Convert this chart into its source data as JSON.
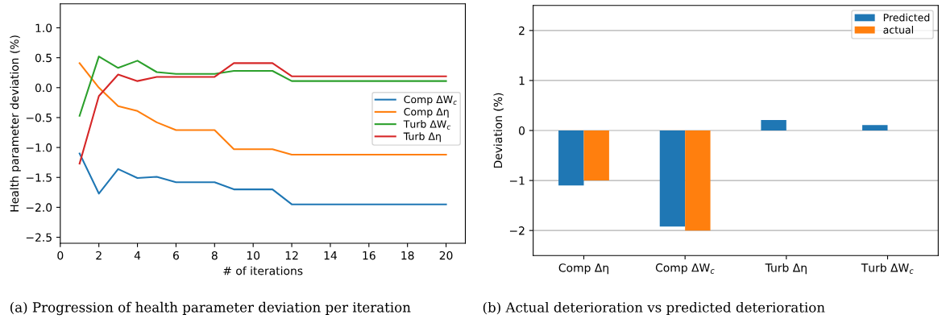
{
  "chart_data": [
    {
      "type": "line",
      "xlabel": "# of iterations",
      "ylabel": "Health parameter deviation (%)",
      "x": [
        1,
        2,
        3,
        4,
        5,
        6,
        7,
        8,
        9,
        10,
        11,
        12,
        13,
        14,
        15,
        16,
        17,
        18,
        19,
        20
      ],
      "series": [
        {
          "name": "Comp ΔW$_{c}$",
          "color": "#1f77b4",
          "values": [
            -1.1,
            -1.77,
            -1.36,
            -1.51,
            -1.49,
            -1.58,
            -1.58,
            -1.58,
            -1.7,
            -1.7,
            -1.7,
            -1.95,
            -1.95,
            -1.95,
            -1.95,
            -1.95,
            -1.95,
            -1.95,
            -1.95,
            -1.95
          ]
        },
        {
          "name": "Comp Δη",
          "color": "#ff7f0e",
          "values": [
            0.41,
            0.0,
            -0.31,
            -0.39,
            -0.58,
            -0.71,
            -0.71,
            -0.71,
            -1.03,
            -1.03,
            -1.03,
            -1.12,
            -1.12,
            -1.12,
            -1.12,
            -1.12,
            -1.12,
            -1.12,
            -1.12,
            -1.12
          ]
        },
        {
          "name": "Turb ΔW$_{c}$",
          "color": "#2ca02c",
          "values": [
            -0.47,
            0.52,
            0.33,
            0.45,
            0.26,
            0.23,
            0.23,
            0.23,
            0.28,
            0.28,
            0.28,
            0.11,
            0.11,
            0.11,
            0.11,
            0.11,
            0.11,
            0.11,
            0.11,
            0.11
          ]
        },
        {
          "name": "Turb Δη",
          "color": "#d62728",
          "values": [
            -1.27,
            -0.14,
            0.22,
            0.11,
            0.18,
            0.18,
            0.18,
            0.18,
            0.41,
            0.41,
            0.41,
            0.19,
            0.19,
            0.19,
            0.19,
            0.19,
            0.19,
            0.19,
            0.19,
            0.19
          ]
        }
      ],
      "xlim": [
        0,
        21
      ],
      "xticks": [
        0,
        2,
        4,
        6,
        8,
        10,
        12,
        14,
        16,
        18,
        20
      ],
      "ylim": [
        -2.6,
        1.4
      ],
      "yticks": [
        {
          "value": -2.5,
          "label": "−2.5"
        },
        {
          "value": -2.0,
          "label": "−2.0"
        },
        {
          "value": -1.5,
          "label": "−1.5"
        },
        {
          "value": -1.0,
          "label": "−1.0"
        },
        {
          "value": -0.5,
          "label": "−0.5"
        },
        {
          "value": 0.0,
          "label": "0.0"
        },
        {
          "value": 0.5,
          "label": "0.5"
        },
        {
          "value": 1.0,
          "label": "1.0"
        }
      ],
      "grid": false,
      "legend": "right",
      "annotations": [
        "(a) Progression of health parameter deviation per iteration"
      ]
    },
    {
      "type": "bar",
      "ylabel": "Deviation (%)",
      "categories": [
        "Comp Δη",
        "Comp ΔW$_{c}$",
        "Turb Δη",
        "Turb ΔW$_{c}$"
      ],
      "series": [
        {
          "name": "Predicted",
          "color": "#1f77b4",
          "values": [
            -1.1,
            -1.92,
            0.21,
            0.11
          ]
        },
        {
          "name": "actual",
          "color": "#ff7f0e",
          "values": [
            -1.0,
            -2.0,
            0.0,
            0.0
          ]
        }
      ],
      "ylim": [
        -2.5,
        2.5
      ],
      "yticks": [
        {
          "value": -2,
          "label": "−2"
        },
        {
          "value": -1,
          "label": "−1"
        },
        0,
        1,
        2
      ],
      "grid": "y",
      "legend": "top right",
      "annotations": [
        "(b) Actual deterioration vs predicted deterioration"
      ]
    }
  ]
}
